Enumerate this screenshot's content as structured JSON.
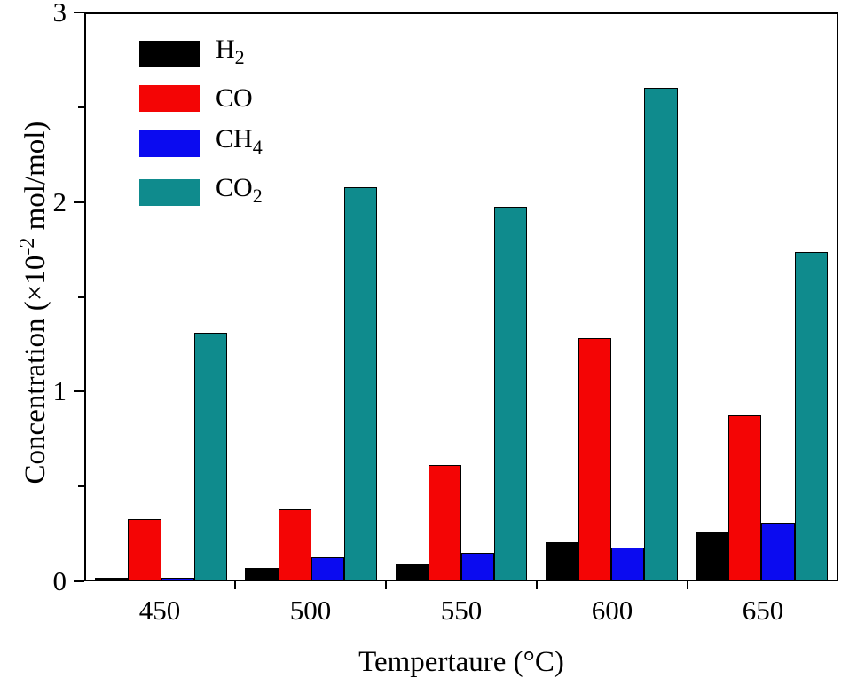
{
  "chart_data": {
    "type": "bar",
    "title": "",
    "xlabel": "Tempertaure (°C)",
    "ylabel": "Concentration (×10-2 mol/mol)",
    "ylabel_pre": "Concentration (×10",
    "ylabel_sup": "-2",
    "ylabel_post": " mol/mol)",
    "categories": [
      "450",
      "500",
      "550",
      "600",
      "650"
    ],
    "series": [
      {
        "name": "H2",
        "label_main": "H",
        "label_sub": "2",
        "color": "#000000",
        "values": [
          0.01,
          0.06,
          0.08,
          0.2,
          0.25
        ]
      },
      {
        "name": "CO",
        "label_main": "CO",
        "label_sub": "",
        "color": "#f40505",
        "values": [
          0.32,
          0.37,
          0.61,
          1.28,
          0.87
        ]
      },
      {
        "name": "CH4",
        "label_main": "CH",
        "label_sub": "4",
        "color": "#0b0bf0",
        "values": [
          0.01,
          0.12,
          0.14,
          0.17,
          0.3
        ]
      },
      {
        "name": "CO2",
        "label_main": "CO",
        "label_sub": "2",
        "color": "#0f8b8d",
        "values": [
          1.31,
          2.08,
          1.98,
          2.61,
          1.74
        ]
      }
    ],
    "ylim": [
      0,
      3
    ],
    "yticks": [
      0,
      1,
      2,
      3
    ],
    "minor_yticks": [
      0.5,
      1.5,
      2.5
    ],
    "legend_position": "top-left",
    "grid": false,
    "frame_color": "#000000",
    "background_color": "#ffffff"
  }
}
